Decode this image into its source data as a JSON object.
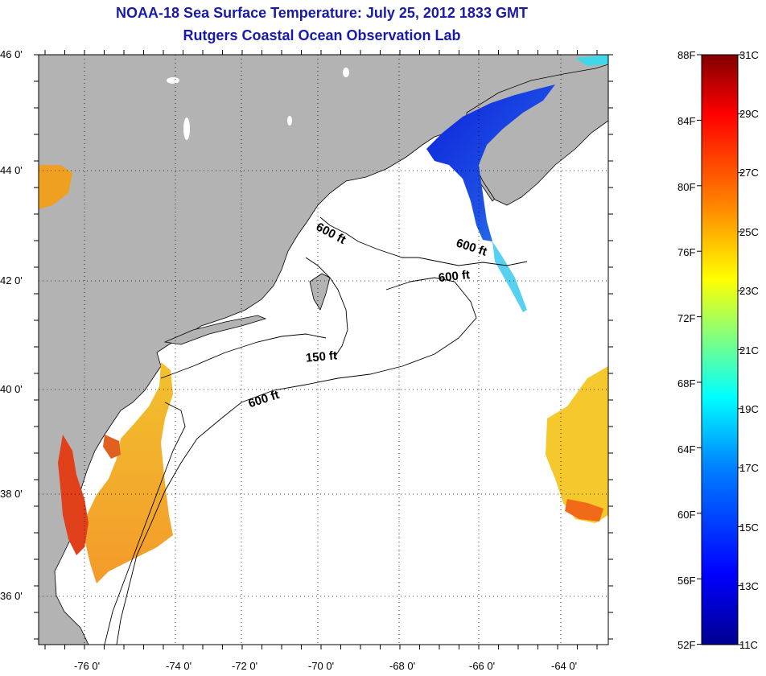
{
  "title": "NOAA-18 Sea Surface Temperature:  July 25, 2012 1833 GMT",
  "subtitle": "Rutgers Coastal Ocean Observation Lab",
  "axes": {
    "lat_labels": [
      "46 0'",
      "44 0'",
      "42 0'",
      "40 0'",
      "38 0'",
      "36 0'"
    ],
    "lon_labels": [
      "-76 0'",
      "-74 0'",
      "-72 0'",
      "-70 0'",
      "-68 0'",
      "-66 0'",
      "-64 0'"
    ]
  },
  "isobaths": [
    "600 ft",
    "600 ft",
    "600 ft",
    "150 ft",
    "600 ft"
  ],
  "colorbar": {
    "f_labels": [
      "88F",
      "84F",
      "80F",
      "76F",
      "72F",
      "68F",
      "64F",
      "60F",
      "56F",
      "52F"
    ],
    "c_labels": [
      "31C",
      "29C",
      "27C",
      "25C",
      "23C",
      "21C",
      "19C",
      "17C",
      "15C",
      "13C",
      "11C"
    ],
    "colors": [
      "#00008f",
      "#0000ff",
      "#0080ff",
      "#00ffff",
      "#80ff80",
      "#ffff00",
      "#ff8000",
      "#ff0000",
      "#800000"
    ]
  },
  "colors": {
    "land": "#b3b3b3",
    "title": "#1a1aa8",
    "warm_water": "#f5a623",
    "bay_water": "#e03a10",
    "cold_water": "#1a3cdc",
    "offshore_water": "#f7c532"
  }
}
